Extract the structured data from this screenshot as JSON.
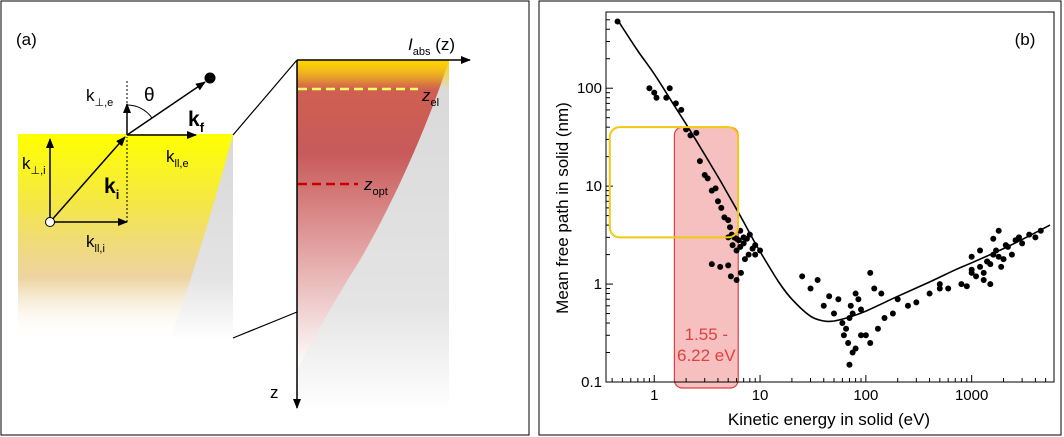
{
  "panel_a": {
    "label": "(a)",
    "theta": "θ",
    "k_perp_e": {
      "main": "k",
      "sub": "⊥,e"
    },
    "k_par_e": {
      "main": "k",
      "sub": "ll,e"
    },
    "k_perp_i": {
      "main": "k",
      "sub": "⊥,i"
    },
    "k_par_i": {
      "main": "k",
      "sub": "ll,i"
    },
    "k_i": {
      "main": "k",
      "sub": "i"
    },
    "k_f": {
      "main": "k",
      "sub": "f"
    },
    "i_abs": {
      "main": "I",
      "sub": "abs",
      "suffix": " (z)"
    },
    "z_el": {
      "main": "z",
      "sub": "el"
    },
    "z_opt": {
      "main": "z",
      "sub": "opt"
    },
    "z_axis": "z",
    "colors": {
      "surface_yellow": "#ffff00",
      "z_el_line": "#ffff66",
      "z_opt_line": "#cc0000",
      "inset_red": "#c0392b"
    }
  },
  "chart_data": {
    "type": "scatter",
    "panel_label": "(b)",
    "xlabel": "Kinetic energy in solid (eV)",
    "ylabel": "Mean free path in solid (nm)",
    "xscale": "log",
    "yscale": "log",
    "xlim": [
      0.35,
      6000
    ],
    "ylim": [
      0.1,
      600
    ],
    "x_ticks": [
      1,
      10,
      100,
      1000
    ],
    "x_tick_labels": [
      "1",
      "10",
      "100",
      "1000"
    ],
    "y_ticks": [
      0.1,
      1,
      10,
      100
    ],
    "y_tick_labels": [
      "0.1",
      "1",
      "10",
      "100"
    ],
    "grid": false,
    "curve": {
      "x": [
        0.45,
        0.7,
        1,
        1.5,
        2,
        3,
        4,
        5,
        6,
        7,
        8,
        10,
        15,
        20,
        30,
        40,
        50,
        70,
        100,
        200,
        400,
        700,
        1000,
        2000,
        3000,
        5500
      ],
      "y": [
        500,
        240,
        140,
        70,
        43,
        21,
        12.5,
        8.2,
        5.8,
        4.3,
        3.3,
        2.15,
        1.05,
        0.7,
        0.47,
        0.42,
        0.42,
        0.46,
        0.53,
        0.75,
        1.05,
        1.4,
        1.65,
        2.3,
        2.85,
        4.0
      ]
    },
    "points": {
      "x": [
        0.45,
        0.9,
        1,
        1.05,
        1.3,
        1.4,
        1.6,
        1.8,
        2.0,
        2.2,
        2.5,
        2.7,
        3.0,
        3.2,
        3.5,
        3.8,
        4.0,
        4.3,
        4.6,
        5.0,
        5.2,
        5.4,
        5.7,
        6.0,
        6.3,
        6.5,
        7.0,
        3.5,
        4.2,
        5.0,
        5.3,
        6.0,
        6.6,
        7.2,
        7.8,
        8.5,
        9.0,
        10,
        5.0,
        5.5,
        6.0,
        6.5,
        7.0,
        7.5,
        8.0,
        9.0,
        25,
        30,
        35,
        40,
        45,
        50,
        55,
        60,
        62,
        65,
        68,
        70,
        72,
        75,
        80,
        85,
        90,
        100,
        110,
        130,
        150,
        180,
        200,
        250,
        300,
        400,
        500,
        70,
        75,
        80,
        90,
        110,
        120,
        140,
        500,
        600,
        800,
        900,
        1000,
        1100,
        1200,
        1300,
        1400,
        1500,
        1600,
        1700,
        1800,
        1900,
        2000,
        2100,
        2200,
        2400,
        2600,
        2800,
        3000,
        3500,
        4000,
        4500,
        1000,
        1200,
        1400,
        1600,
        1800,
        1000,
        1300,
        1500
      ],
      "y": [
        480,
        100,
        90,
        80,
        80,
        100,
        70,
        60,
        38,
        33,
        35,
        18,
        13,
        12,
        9,
        9.5,
        7,
        6,
        4.8,
        4.5,
        3.8,
        3.2,
        3.0,
        2.9,
        2.8,
        3.5,
        3.0,
        1.6,
        1.5,
        1.55,
        1.2,
        1.1,
        1.3,
        1.8,
        2.0,
        2.3,
        2.5,
        2.2,
        3.0,
        2.5,
        2.2,
        2.4,
        2.6,
        2.9,
        3.2,
        2.0,
        1.2,
        0.9,
        1.1,
        0.6,
        0.75,
        0.5,
        0.7,
        0.4,
        0.3,
        0.35,
        0.25,
        0.45,
        0.6,
        0.5,
        0.8,
        0.7,
        0.55,
        0.3,
        0.25,
        0.35,
        0.45,
        0.5,
        0.7,
        0.6,
        0.65,
        0.8,
        0.9,
        0.15,
        0.2,
        0.22,
        0.3,
        1.3,
        0.9,
        0.8,
        1.0,
        0.9,
        1.0,
        0.95,
        1.4,
        1.2,
        1.5,
        1.3,
        1.7,
        1.6,
        2.0,
        2.2,
        1.9,
        1.5,
        1.8,
        2.5,
        2.4,
        2.0,
        2.8,
        3.0,
        2.6,
        3.2,
        3.0,
        3.5,
        1.9,
        2.2,
        1.7,
        2.9,
        3.5,
        1.3,
        1.1,
        1.0
      ],
      "color": "#000000"
    },
    "yellow_box": {
      "x_range": [
        0.38,
        6.2
      ],
      "y_range": [
        3.0,
        40
      ],
      "color": "#f2c811"
    },
    "red_band": {
      "x_range": [
        1.55,
        6.22
      ],
      "y_range": [
        0.085,
        40
      ],
      "color": "#e04040",
      "fill": "#f4b0b0",
      "label": "1.55 - 6.22 eV"
    }
  }
}
